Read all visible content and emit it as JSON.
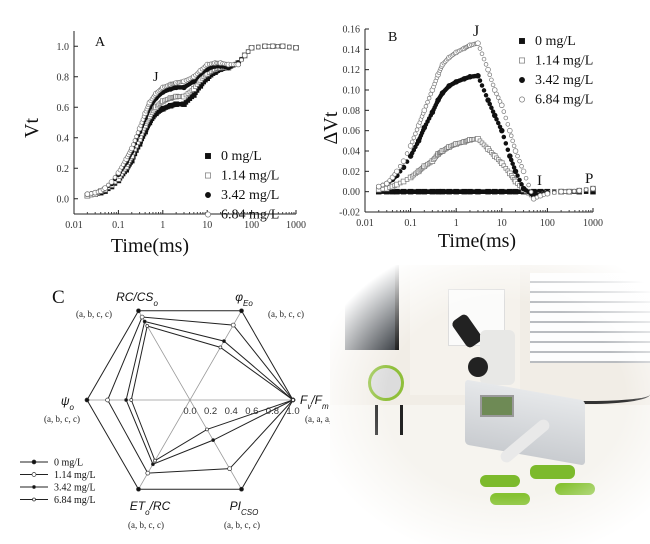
{
  "chart_data": [
    {
      "panel": "A",
      "type": "scatter",
      "xlabel": "Time(ms)",
      "ylabel": "Vt",
      "xscale": "log",
      "xlim": [
        0.01,
        1000
      ],
      "ylim": [
        -0.1,
        1.1
      ],
      "xticks": [
        "0.01",
        "0.1",
        "1",
        "10",
        "100",
        "1000"
      ],
      "yticks": [
        "0.0",
        "0.2",
        "0.4",
        "0.6",
        "0.8",
        "1.0"
      ],
      "annotations": [
        "J"
      ],
      "legend_position": "bottom-right",
      "x": [
        0.02,
        0.03,
        0.04,
        0.05,
        0.07,
        0.1,
        0.15,
        0.2,
        0.3,
        0.4,
        0.5,
        0.7,
        1,
        1.5,
        2,
        3,
        5,
        7,
        10,
        15,
        20,
        30,
        50,
        70,
        100,
        200,
        300,
        500,
        1000
      ],
      "series": [
        {
          "name": "0 mg/L",
          "marker": "filled-square",
          "values": [
            0.02,
            0.03,
            0.04,
            0.05,
            0.08,
            0.12,
            0.19,
            0.25,
            0.36,
            0.44,
            0.5,
            0.56,
            0.59,
            0.61,
            0.62,
            0.62,
            0.68,
            0.74,
            0.79,
            0.83,
            0.85,
            0.86,
            0.89,
            0.94,
            0.99,
            1.0,
            1.0,
            1.0,
            0.99
          ]
        },
        {
          "name": "1.14 mg/L",
          "marker": "open-square",
          "values": [
            0.02,
            0.03,
            0.05,
            0.06,
            0.09,
            0.13,
            0.21,
            0.28,
            0.39,
            0.48,
            0.54,
            0.6,
            0.64,
            0.66,
            0.67,
            0.67,
            0.72,
            0.78,
            0.82,
            0.85,
            0.86,
            0.86,
            0.89,
            0.94,
            0.99,
            1.0,
            1.0,
            1.0,
            0.99
          ]
        },
        {
          "name": "3.42 mg/L",
          "marker": "filled-circle",
          "values": [
            0.03,
            0.04,
            0.05,
            0.07,
            0.1,
            0.16,
            0.24,
            0.31,
            0.44,
            0.53,
            0.6,
            0.66,
            0.7,
            0.72,
            0.73,
            0.73,
            0.77,
            0.82,
            0.85,
            0.87,
            0.87,
            0.86,
            0.89,
            0.94,
            0.99,
            1.0,
            1.0,
            1.0,
            0.99
          ]
        },
        {
          "name": "6.84 mg/L",
          "marker": "open-circle",
          "values": [
            0.03,
            0.04,
            0.05,
            0.07,
            0.11,
            0.17,
            0.26,
            0.33,
            0.46,
            0.56,
            0.63,
            0.69,
            0.73,
            0.75,
            0.76,
            0.77,
            0.8,
            0.84,
            0.88,
            0.89,
            0.89,
            0.88,
            0.88,
            0.94,
            0.99,
            1.0,
            1.0,
            1.0,
            0.99
          ]
        }
      ]
    },
    {
      "panel": "B",
      "type": "scatter",
      "xlabel": "Time(ms)",
      "ylabel": "ΔVt",
      "xscale": "log",
      "xlim": [
        0.01,
        1000
      ],
      "ylim": [
        -0.02,
        0.16
      ],
      "xticks": [
        "0.01",
        "0.1",
        "1",
        "10",
        "100",
        "1000"
      ],
      "yticks": [
        "-0.02",
        "0.00",
        "0.02",
        "0.04",
        "0.06",
        "0.08",
        "0.10",
        "0.12",
        "0.14",
        "0.16"
      ],
      "annotations": [
        "J",
        "I",
        "P"
      ],
      "legend_position": "top-right",
      "x": [
        0.02,
        0.03,
        0.04,
        0.05,
        0.07,
        0.1,
        0.15,
        0.2,
        0.3,
        0.4,
        0.5,
        0.7,
        1,
        1.5,
        2,
        3,
        5,
        7,
        10,
        15,
        20,
        30,
        50,
        70,
        100,
        200,
        300,
        500,
        1000
      ],
      "series": [
        {
          "name": "0 mg/L",
          "marker": "filled-square",
          "values": [
            0,
            0,
            0,
            0,
            0,
            0,
            0,
            0,
            0,
            0,
            0,
            0,
            0,
            0,
            0,
            0,
            0,
            0,
            0,
            0,
            0,
            0,
            0,
            0,
            0,
            0,
            0,
            0,
            0
          ]
        },
        {
          "name": "1.14 mg/L",
          "marker": "open-square",
          "values": [
            0.002,
            0.003,
            0.005,
            0.007,
            0.01,
            0.014,
            0.02,
            0.025,
            0.03,
            0.037,
            0.04,
            0.044,
            0.047,
            0.049,
            0.051,
            0.052,
            0.042,
            0.035,
            0.028,
            0.018,
            0.01,
            0.002,
            -0.005,
            -0.003,
            -0.001,
            0,
            0,
            0.001,
            0.003
          ]
        },
        {
          "name": "3.42 mg/L",
          "marker": "filled-circle",
          "values": [
            0.005,
            0.008,
            0.012,
            0.016,
            0.024,
            0.035,
            0.05,
            0.063,
            0.078,
            0.09,
            0.097,
            0.104,
            0.108,
            0.111,
            0.113,
            0.114,
            0.09,
            0.075,
            0.06,
            0.035,
            0.02,
            0.003,
            -0.004,
            -0.003,
            -0.001,
            0,
            0,
            0.001,
            0.003
          ]
        },
        {
          "name": "6.84 mg/L",
          "marker": "open-circle",
          "values": [
            0.005,
            0.008,
            0.014,
            0.02,
            0.03,
            0.045,
            0.065,
            0.08,
            0.1,
            0.115,
            0.125,
            0.132,
            0.137,
            0.141,
            0.144,
            0.146,
            0.12,
            0.1,
            0.085,
            0.06,
            0.04,
            0.02,
            -0.007,
            -0.004,
            -0.002,
            0,
            0,
            0.001,
            0.003
          ]
        }
      ]
    },
    {
      "panel": "C",
      "type": "radar",
      "rlim": [
        0,
        1
      ],
      "rticks": [
        "0.0",
        "0.2",
        "0.4",
        "0.6",
        "0.8",
        "1.0"
      ],
      "legend_position": "bottom-left",
      "axes": [
        {
          "name": "Fv/Fm",
          "parts": [
            {
              "t": "F"
            },
            {
              "t": "v",
              "sub": true
            },
            {
              "t": "/F"
            },
            {
              "t": "m",
              "sub": true
            }
          ],
          "significance": "(a, a, a, a)"
        },
        {
          "name": "φEo",
          "parts": [
            {
              "t": "φ"
            },
            {
              "t": "Eo",
              "sub": true
            }
          ],
          "significance": "(a, b, c, c)"
        },
        {
          "name": "RC/CSo",
          "parts": [
            {
              "t": "RC/CS"
            },
            {
              "t": "o",
              "sub": true
            }
          ],
          "significance": "(a, b, c, c)"
        },
        {
          "name": "ψo",
          "parts": [
            {
              "t": "ψ"
            },
            {
              "t": "o",
              "sub": true
            }
          ],
          "significance": "(a, b, c, c)"
        },
        {
          "name": "ETo/RC",
          "parts": [
            {
              "t": "ET"
            },
            {
              "t": "o",
              "sub": true
            },
            {
              "t": "/RC"
            }
          ],
          "significance": "(a, b, c, c)"
        },
        {
          "name": "PIcso",
          "parts": [
            {
              "t": "PI"
            },
            {
              "t": "CSO",
              "sub": true
            }
          ],
          "significance": "(a, b, c, c)"
        }
      ],
      "series": [
        {
          "name": "0 mg/L",
          "marker": "filled-circle",
          "values": [
            1,
            1,
            1,
            1,
            1,
            1
          ]
        },
        {
          "name": "1.14 mg/L",
          "marker": "open-circle",
          "values": [
            1,
            0.84,
            0.93,
            0.8,
            0.82,
            0.77
          ]
        },
        {
          "name": "3.42 mg/L",
          "marker": "filled-small",
          "values": [
            1,
            0.66,
            0.88,
            0.62,
            0.72,
            0.45
          ]
        },
        {
          "name": "6.84 mg/L",
          "marker": "open-small",
          "values": [
            1,
            0.59,
            0.83,
            0.57,
            0.68,
            0.33
          ]
        }
      ]
    }
  ],
  "panels": {
    "a": "A",
    "b": "B",
    "c": "C"
  }
}
